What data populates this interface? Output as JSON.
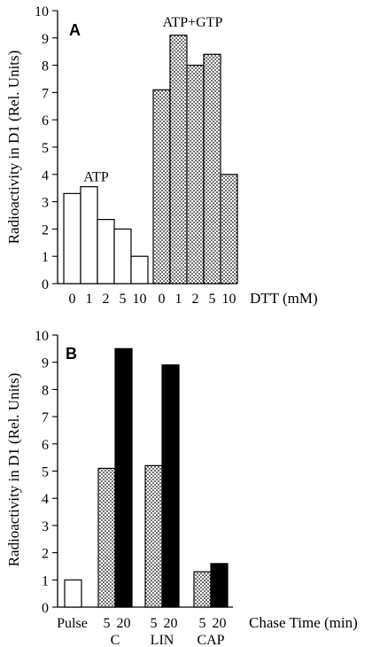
{
  "chart_data": [
    {
      "type": "bar",
      "panel_label": "A",
      "ylabel": "Radioactivity in D1 (Rel. Units)",
      "xlabel": "DTT (mM)",
      "ylim": [
        0,
        10
      ],
      "yticks": [
        0,
        1,
        2,
        3,
        4,
        5,
        6,
        7,
        8,
        9,
        10
      ],
      "grid": false,
      "groups": [
        {
          "name": "ATP",
          "fill": "white",
          "categories": [
            "0",
            "1",
            "2",
            "5",
            "10"
          ],
          "values": [
            3.3,
            3.55,
            2.35,
            2.0,
            1.0
          ]
        },
        {
          "name": "ATP+GTP",
          "fill": "dotted",
          "categories": [
            "0",
            "1",
            "2",
            "5",
            "10"
          ],
          "values": [
            7.1,
            9.1,
            8.0,
            8.4,
            4.0
          ]
        }
      ]
    },
    {
      "type": "bar",
      "panel_label": "B",
      "ylabel": "Radioactivity in D1 (Rel. Units)",
      "xlabel": "Chase Time (min)",
      "ylim": [
        0,
        10
      ],
      "yticks": [
        0,
        1,
        2,
        3,
        4,
        5,
        6,
        7,
        8,
        9,
        10
      ],
      "grid": false,
      "groups": [
        {
          "name": "",
          "bars": [
            {
              "label": "Pulse",
              "value": 1.0,
              "fill": "white"
            }
          ]
        },
        {
          "name": "C",
          "bars": [
            {
              "label": "5",
              "value": 5.1,
              "fill": "dotted"
            },
            {
              "label": "20",
              "value": 9.5,
              "fill": "black"
            }
          ]
        },
        {
          "name": "LIN",
          "bars": [
            {
              "label": "5",
              "value": 5.2,
              "fill": "dotted"
            },
            {
              "label": "20",
              "value": 8.9,
              "fill": "black"
            }
          ]
        },
        {
          "name": "CAP",
          "bars": [
            {
              "label": "5",
              "value": 1.3,
              "fill": "dotted"
            },
            {
              "label": "20",
              "value": 1.6,
              "fill": "black"
            }
          ]
        }
      ]
    }
  ]
}
